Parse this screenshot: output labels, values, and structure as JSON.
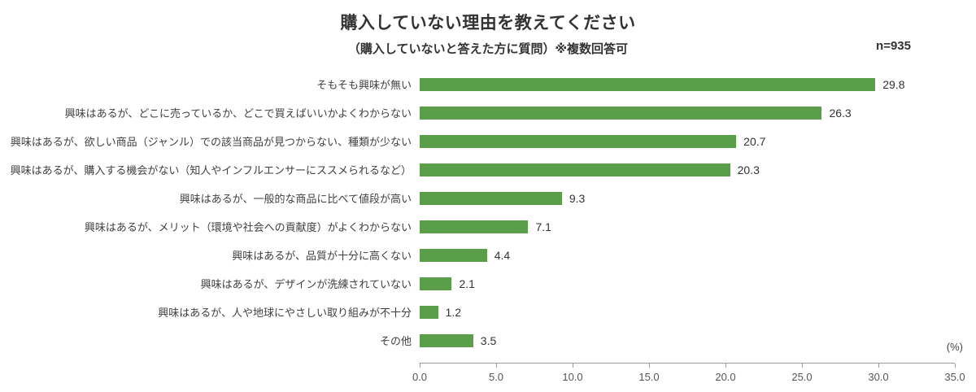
{
  "header": {
    "title": "購入していない理由を教えてください",
    "subtitle": "（購入していないと答えた方に質問）※複数回答可",
    "sample_size": "n=935"
  },
  "chart_data": {
    "type": "bar",
    "orientation": "horizontal",
    "title": "購入していない理由を教えてください",
    "subtitle": "（購入していないと答えた方に質問）※複数回答可",
    "sample_size": "n=935",
    "categories": [
      "そもそも興味が無い",
      "興味はあるが、どこに売っているか、どこで買えばいいかよくわからない",
      "興味はあるが、欲しい商品（ジャンル）での該当商品が見つからない、種類が少ない",
      "興味はあるが、購入する機会がない（知人やインフルエンサーにススメられるなど）",
      "興味はあるが、一般的な商品に比べて値段が高い",
      "興味はあるが、メリット（環境や社会への貢献度）がよくわからない",
      "興味はあるが、品質が十分に高くない",
      "興味はあるが、デザインが洗練されていない",
      "興味はあるが、人や地球にやさしい取り組みが不十分",
      "その他"
    ],
    "values": [
      29.8,
      26.3,
      20.7,
      20.3,
      9.3,
      7.1,
      4.4,
      2.1,
      1.2,
      3.5
    ],
    "xlabel": "(%)",
    "xlim": [
      0,
      35
    ],
    "x_ticks": [
      "0.0",
      "5.0",
      "10.0",
      "15.0",
      "20.0",
      "25.0",
      "30.0",
      "35.0"
    ],
    "bar_color": "#5b9e49",
    "grid": false,
    "legend": "none"
  }
}
